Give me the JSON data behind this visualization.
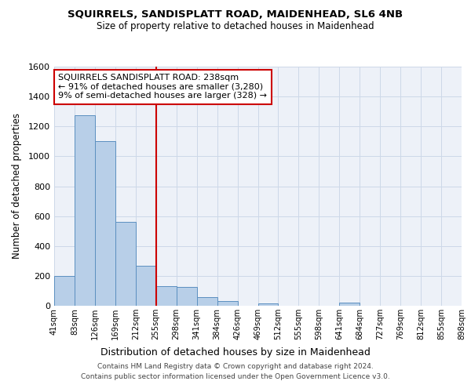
{
  "title1": "SQUIRRELS, SANDISPLATT ROAD, MAIDENHEAD, SL6 4NB",
  "title2": "Size of property relative to detached houses in Maidenhead",
  "xlabel": "Distribution of detached houses by size in Maidenhead",
  "ylabel": "Number of detached properties",
  "footer1": "Contains HM Land Registry data © Crown copyright and database right 2024.",
  "footer2": "Contains public sector information licensed under the Open Government Licence v3.0.",
  "annotation_line1": "SQUIRRELS SANDISPLATT ROAD: 238sqm",
  "annotation_line2": "← 91% of detached houses are smaller (3,280)",
  "annotation_line3": "9% of semi-detached houses are larger (328) →",
  "bar_values": [
    200,
    1275,
    1100,
    560,
    270,
    130,
    125,
    60,
    30,
    0,
    15,
    0,
    0,
    0,
    20,
    0,
    0,
    0,
    0,
    0
  ],
  "bin_labels": [
    "41sqm",
    "83sqm",
    "126sqm",
    "169sqm",
    "212sqm",
    "255sqm",
    "298sqm",
    "341sqm",
    "384sqm",
    "426sqm",
    "469sqm",
    "512sqm",
    "555sqm",
    "598sqm",
    "641sqm",
    "684sqm",
    "727sqm",
    "769sqm",
    "812sqm",
    "855sqm",
    "898sqm"
  ],
  "bar_color": "#b8cfe8",
  "bar_edge_color": "#5b8fc0",
  "vline_color": "#cc0000",
  "annotation_box_edge_color": "#cc0000",
  "grid_color": "#cdd8e8",
  "bg_color": "#edf1f8",
  "ylim": [
    0,
    1600
  ],
  "yticks": [
    0,
    200,
    400,
    600,
    800,
    1000,
    1200,
    1400,
    1600
  ],
  "vline_bin_index": 5
}
